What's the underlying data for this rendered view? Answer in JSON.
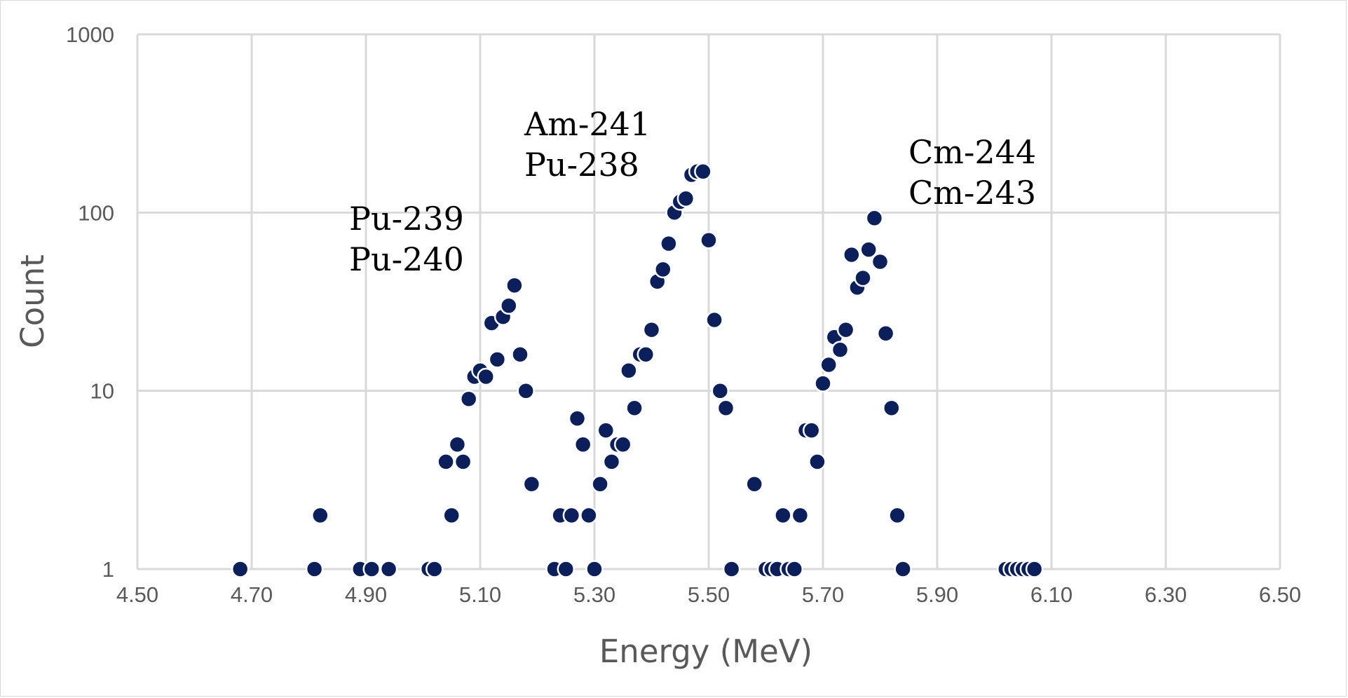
{
  "chart_data": {
    "type": "scatter",
    "title": "",
    "xlabel": "Energy (MeV)",
    "ylabel": "Count",
    "xlim": [
      4.5,
      6.5
    ],
    "ylim": [
      1,
      1000
    ],
    "yscale": "log",
    "grid": true,
    "legend": "none",
    "colors": {
      "point": "#0b1f5c",
      "grid": "#d9d9d9",
      "text": "#595959"
    },
    "x_ticks": [
      "4.50",
      "4.70",
      "4.90",
      "5.10",
      "5.30",
      "5.50",
      "5.70",
      "5.90",
      "6.10",
      "6.30",
      "6.50"
    ],
    "y_ticks": [
      "1",
      "10",
      "100",
      "1000"
    ],
    "annotations": [
      {
        "lines": [
          "Pu-239",
          "Pu-240"
        ]
      },
      {
        "lines": [
          "Am-241",
          "Pu-238"
        ]
      },
      {
        "lines": [
          "Cm-244",
          "Cm-243"
        ]
      }
    ],
    "points": [
      [
        4.68,
        1
      ],
      [
        4.81,
        1
      ],
      [
        4.82,
        2
      ],
      [
        4.89,
        1
      ],
      [
        4.91,
        1
      ],
      [
        4.94,
        1
      ],
      [
        5.01,
        1
      ],
      [
        5.02,
        1
      ],
      [
        5.04,
        4
      ],
      [
        5.05,
        2
      ],
      [
        5.06,
        5
      ],
      [
        5.07,
        4
      ],
      [
        5.08,
        9
      ],
      [
        5.09,
        12
      ],
      [
        5.1,
        13
      ],
      [
        5.11,
        12
      ],
      [
        5.12,
        24
      ],
      [
        5.13,
        15
      ],
      [
        5.14,
        26
      ],
      [
        5.15,
        30
      ],
      [
        5.16,
        39
      ],
      [
        5.17,
        16
      ],
      [
        5.18,
        10
      ],
      [
        5.19,
        3
      ],
      [
        5.23,
        1
      ],
      [
        5.24,
        2
      ],
      [
        5.25,
        1
      ],
      [
        5.26,
        2
      ],
      [
        5.27,
        7
      ],
      [
        5.28,
        5
      ],
      [
        5.29,
        2
      ],
      [
        5.3,
        1
      ],
      [
        5.31,
        3
      ],
      [
        5.32,
        6
      ],
      [
        5.33,
        4
      ],
      [
        5.34,
        5
      ],
      [
        5.35,
        5
      ],
      [
        5.36,
        13
      ],
      [
        5.37,
        8
      ],
      [
        5.38,
        16
      ],
      [
        5.39,
        16
      ],
      [
        5.4,
        22
      ],
      [
        5.41,
        41
      ],
      [
        5.42,
        48
      ],
      [
        5.43,
        67
      ],
      [
        5.44,
        100
      ],
      [
        5.45,
        115
      ],
      [
        5.46,
        120
      ],
      [
        5.47,
        163
      ],
      [
        5.48,
        170
      ],
      [
        5.49,
        170
      ],
      [
        5.5,
        70
      ],
      [
        5.51,
        25
      ],
      [
        5.52,
        10
      ],
      [
        5.53,
        8
      ],
      [
        5.54,
        1
      ],
      [
        5.58,
        3
      ],
      [
        5.6,
        1
      ],
      [
        5.61,
        1
      ],
      [
        5.62,
        1
      ],
      [
        5.63,
        2
      ],
      [
        5.64,
        1
      ],
      [
        5.65,
        1
      ],
      [
        5.66,
        2
      ],
      [
        5.67,
        6
      ],
      [
        5.68,
        6
      ],
      [
        5.69,
        4
      ],
      [
        5.7,
        11
      ],
      [
        5.71,
        14
      ],
      [
        5.72,
        20
      ],
      [
        5.73,
        17
      ],
      [
        5.74,
        22
      ],
      [
        5.75,
        58
      ],
      [
        5.76,
        38
      ],
      [
        5.77,
        43
      ],
      [
        5.78,
        62
      ],
      [
        5.79,
        93
      ],
      [
        5.8,
        53
      ],
      [
        5.81,
        21
      ],
      [
        5.82,
        8
      ],
      [
        5.83,
        2
      ],
      [
        5.84,
        1
      ],
      [
        6.02,
        1
      ],
      [
        6.03,
        1
      ],
      [
        6.04,
        1
      ],
      [
        6.05,
        1
      ],
      [
        6.06,
        1
      ],
      [
        6.07,
        1
      ]
    ]
  }
}
